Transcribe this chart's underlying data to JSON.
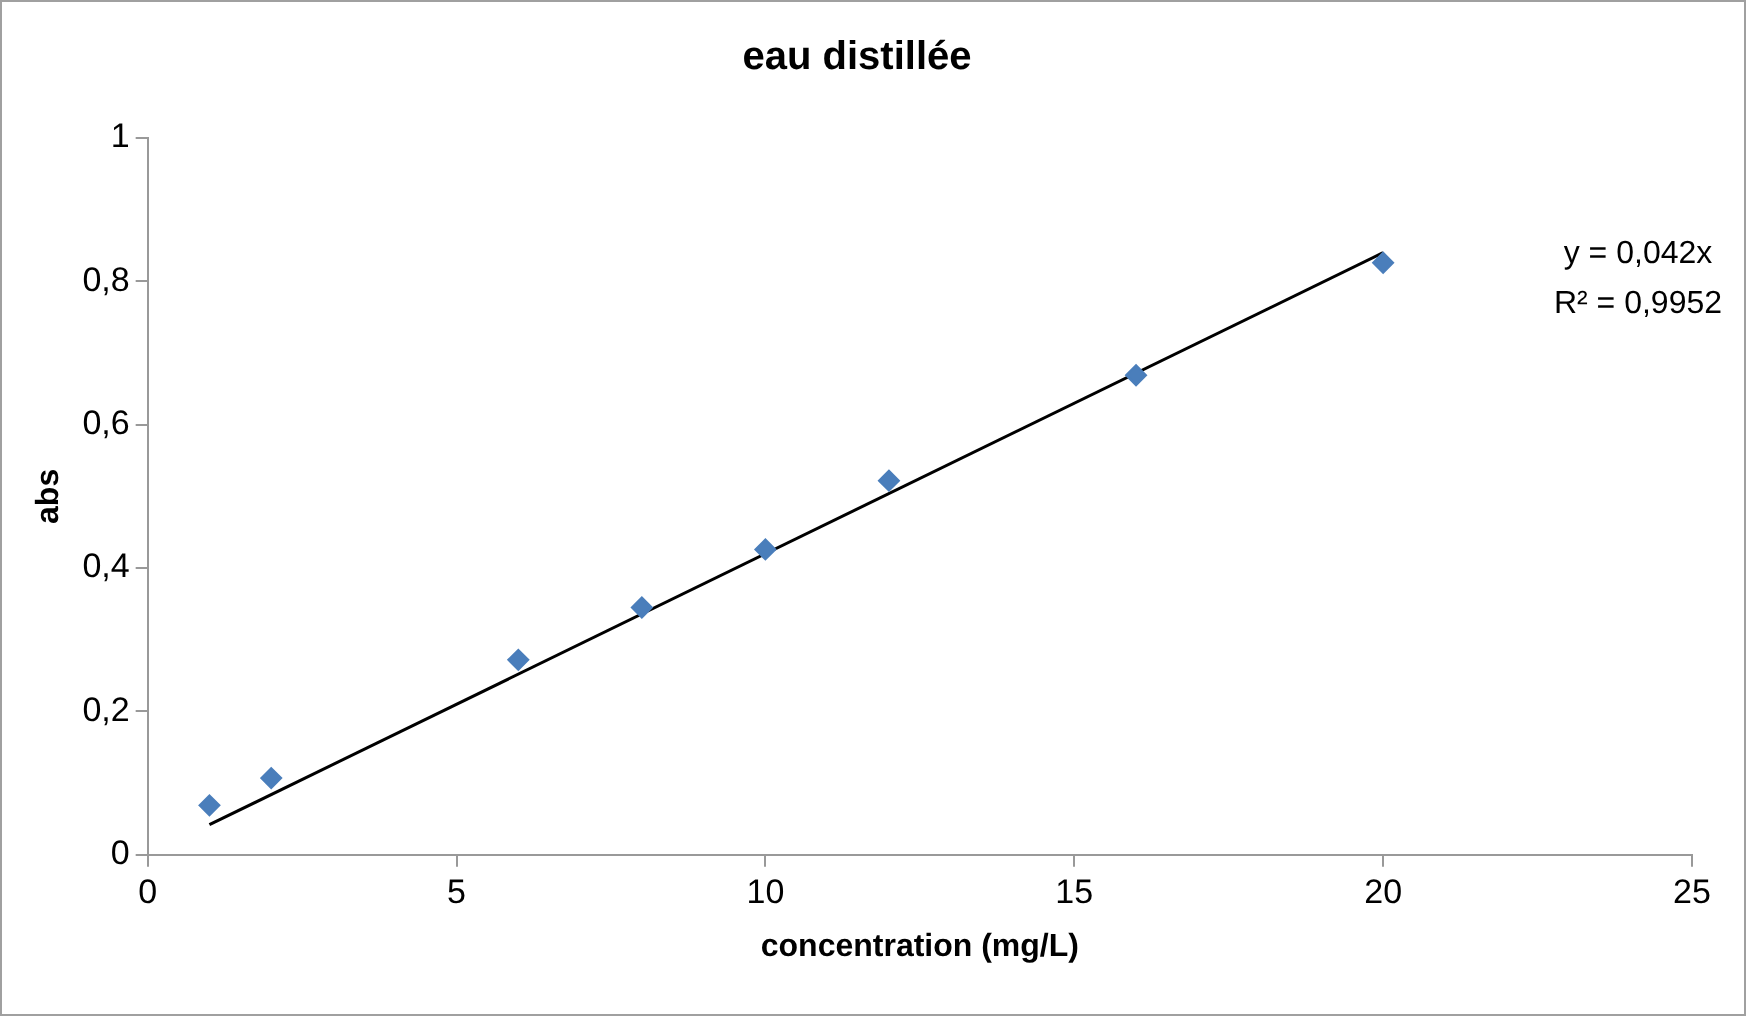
{
  "chart_data": {
    "type": "scatter",
    "title": "eau distillée",
    "xlabel": "concentration (mg/L)",
    "ylabel": "abs",
    "xlim": [
      0,
      25
    ],
    "xticks": [
      0,
      5,
      10,
      15,
      20,
      25
    ],
    "ylim": [
      0,
      1
    ],
    "yticks": [
      0,
      {
        "value": 0.2,
        "label": "0,2"
      },
      {
        "value": 0.4,
        "label": "0,4"
      },
      {
        "value": 0.6,
        "label": "0,6"
      },
      {
        "value": 0.8,
        "label": "0,8"
      },
      1
    ],
    "grid": false,
    "legend": false,
    "marker": "diamond",
    "series": [
      {
        "color": "#4a7ebb",
        "x": [
          1,
          2,
          6,
          8,
          10,
          12,
          16,
          20
        ],
        "values": [
          0.069,
          0.107,
          0.272,
          0.345,
          0.426,
          0.522,
          0.669,
          0.826
        ]
      },
      {
        "type": "line",
        "color": "#000000",
        "x": [
          1,
          20
        ],
        "values": [
          0.042,
          0.84
        ],
        "marker": "none",
        "line_style": "solid"
      }
    ],
    "annotations": [
      "y = 0,042x",
      "R² = 0,9952"
    ]
  }
}
